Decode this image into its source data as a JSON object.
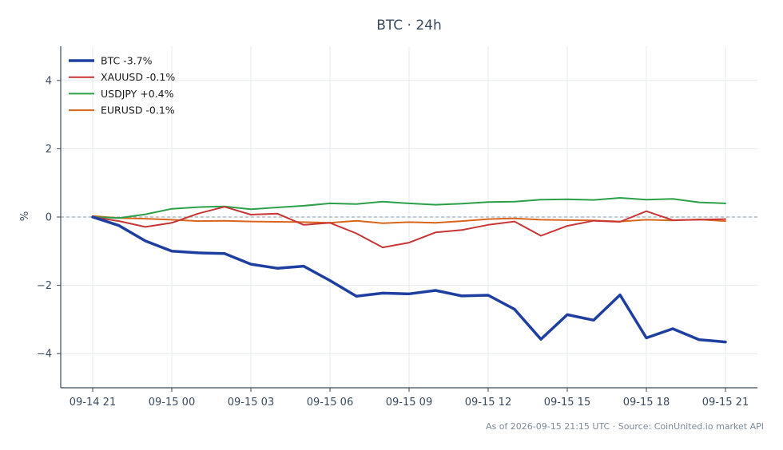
{
  "chart_data": {
    "type": "line",
    "title": "BTC · 24h",
    "ylabel": "%",
    "xlabel": "",
    "ylim": [
      -5,
      5
    ],
    "y_ticks": [
      {
        "value": 4,
        "label": "4"
      },
      {
        "value": 2,
        "label": "2"
      },
      {
        "value": 0,
        "label": "0"
      },
      {
        "value": -2,
        "label": "−2"
      },
      {
        "value": -4,
        "label": "−4"
      }
    ],
    "x": [
      "09-14 21",
      "09-14 22",
      "09-14 23",
      "09-15 00",
      "09-15 01",
      "09-15 02",
      "09-15 03",
      "09-15 04",
      "09-15 05",
      "09-15 06",
      "09-15 07",
      "09-15 08",
      "09-15 09",
      "09-15 10",
      "09-15 11",
      "09-15 12",
      "09-15 13",
      "09-15 14",
      "09-15 15",
      "09-15 16",
      "09-15 17",
      "09-15 18",
      "09-15 19",
      "09-15 20",
      "09-15 21"
    ],
    "x_tick_labels": [
      {
        "index": 0,
        "label": "09-14 21"
      },
      {
        "index": 3,
        "label": "09-15 00"
      },
      {
        "index": 6,
        "label": "09-15 03"
      },
      {
        "index": 9,
        "label": "09-15 06"
      },
      {
        "index": 12,
        "label": "09-15 09"
      },
      {
        "index": 15,
        "label": "09-15 12"
      },
      {
        "index": 18,
        "label": "09-15 15"
      },
      {
        "index": 21,
        "label": "09-15 18"
      },
      {
        "index": 24,
        "label": "09-15 21"
      }
    ],
    "zero_line": true,
    "grid": true,
    "legend_position": "top-left",
    "series": [
      {
        "name": "BTC -3.7%",
        "color": "#1f3fa0",
        "width": 3.5,
        "values": [
          0.0,
          -0.25,
          -0.7,
          -1.0,
          -1.05,
          -1.07,
          -1.38,
          -1.5,
          -1.44,
          -1.86,
          -2.32,
          -2.23,
          -2.25,
          -2.15,
          -2.31,
          -2.29,
          -2.7,
          -3.58,
          -2.86,
          -3.02,
          -2.28,
          -3.54,
          -3.27,
          -3.59,
          -3.66
        ]
      },
      {
        "name": "XAUUSD -0.1%",
        "color": "#c73535",
        "width": 2,
        "values": [
          0.0,
          -0.12,
          -0.29,
          -0.17,
          0.1,
          0.3,
          0.07,
          0.1,
          -0.23,
          -0.17,
          -0.48,
          -0.89,
          -0.75,
          -0.45,
          -0.38,
          -0.23,
          -0.13,
          -0.55,
          -0.26,
          -0.11,
          -0.14,
          0.17,
          -0.09,
          -0.08,
          -0.06
        ]
      },
      {
        "name": "USDJPY +0.4%",
        "color": "#2ca048",
        "width": 2,
        "values": [
          0.0,
          -0.03,
          0.08,
          0.24,
          0.29,
          0.31,
          0.23,
          0.28,
          0.33,
          0.4,
          0.38,
          0.45,
          0.4,
          0.36,
          0.39,
          0.44,
          0.45,
          0.51,
          0.52,
          0.5,
          0.56,
          0.51,
          0.53,
          0.43,
          0.4
        ]
      },
      {
        "name": "EURUSD -0.1%",
        "color": "#d9661c",
        "width": 2,
        "values": [
          0.03,
          -0.03,
          -0.05,
          -0.08,
          -0.12,
          -0.11,
          -0.13,
          -0.14,
          -0.15,
          -0.17,
          -0.11,
          -0.18,
          -0.15,
          -0.17,
          -0.12,
          -0.06,
          -0.04,
          -0.08,
          -0.09,
          -0.1,
          -0.13,
          -0.08,
          -0.1,
          -0.07,
          -0.12
        ]
      }
    ]
  },
  "footer": {
    "text": "As of 2026-09-15 21:15 UTC · Source: CoinUnited.io market API"
  },
  "colors": {
    "axis": "#3a4a5c",
    "grid": "#e6e9ee",
    "zero_line": "#8a9aaa"
  }
}
